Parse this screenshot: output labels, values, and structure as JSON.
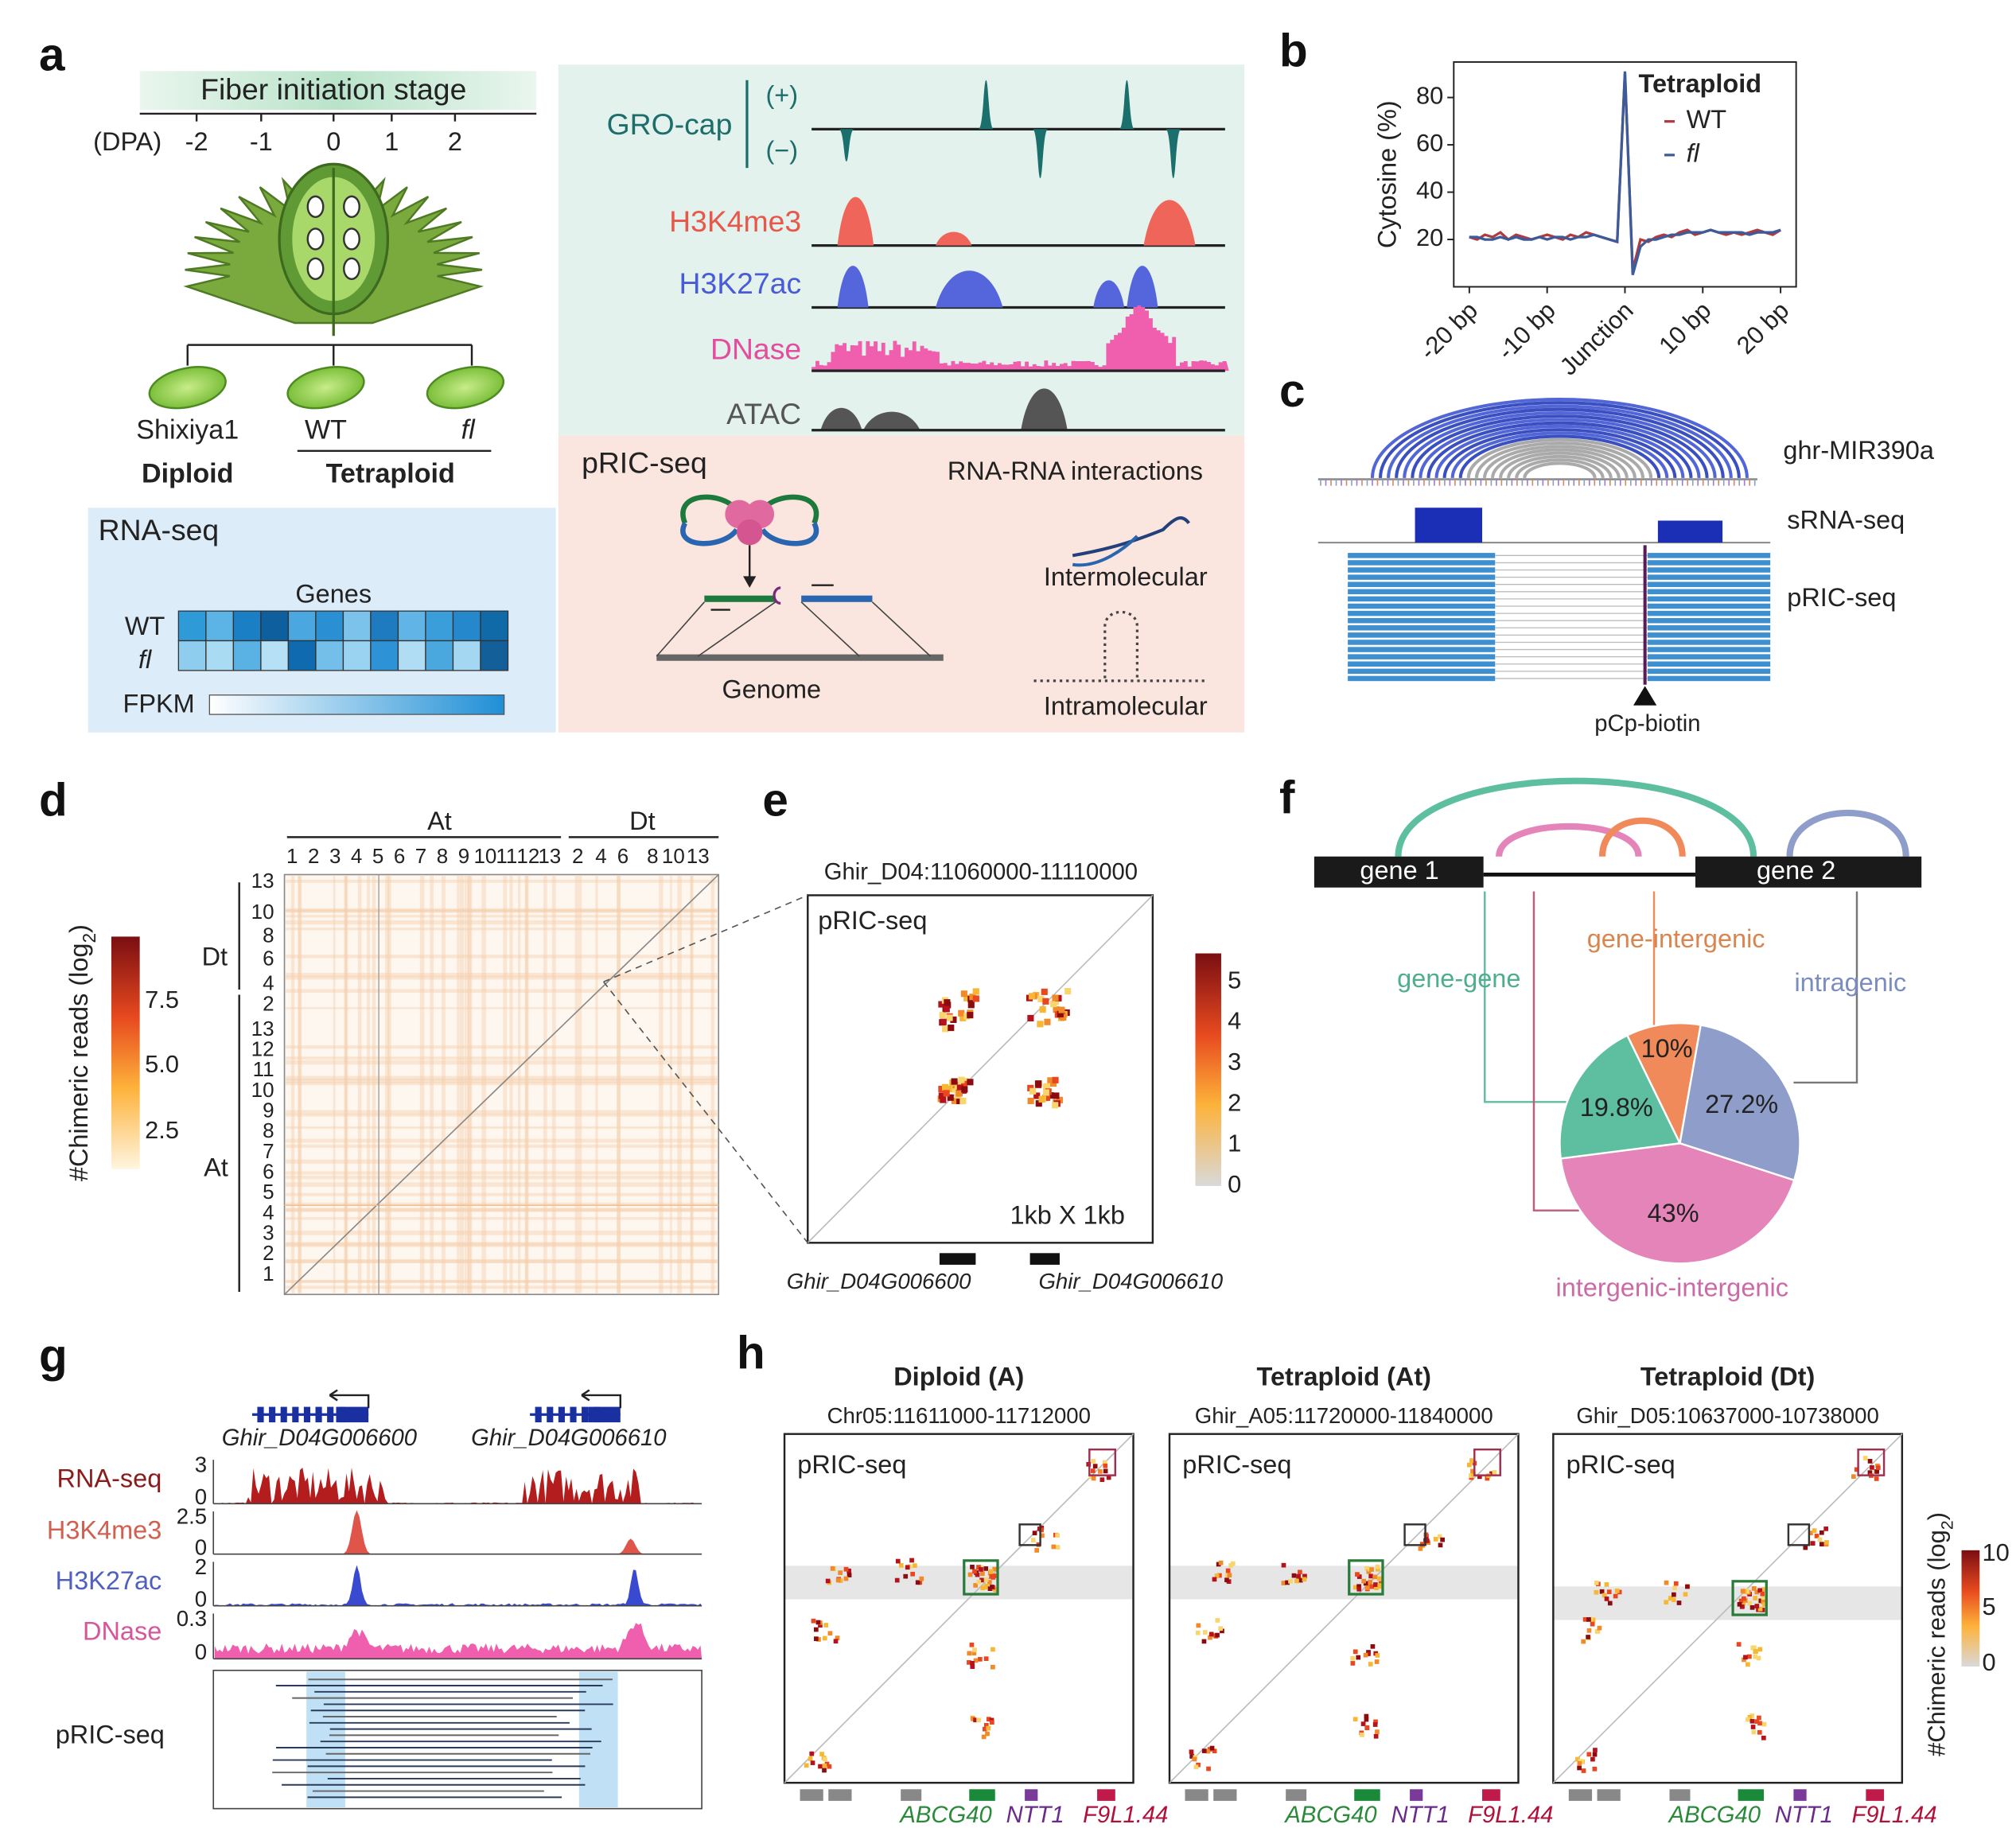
{
  "figure": {
    "panel_labels": [
      "a",
      "b",
      "c",
      "d",
      "e",
      "f",
      "g",
      "h"
    ],
    "a": {
      "stage": "Fiber initiation stage",
      "dpa_label": "(DPA)",
      "dpa_ticks": [
        "-2",
        "-1",
        "0",
        "1",
        "2"
      ],
      "samples": [
        "Shixiya1",
        "WT",
        "fl"
      ],
      "ploidy": [
        "Diploid",
        "Tetraploid"
      ],
      "rnaseq_title": "RNA-seq",
      "genes_label": "Genes",
      "rows": [
        "WT",
        "fl"
      ],
      "fpkm": "FPKM",
      "tracks": {
        "grocap": "GRO-cap",
        "plus": "(+)",
        "minus": "(−)",
        "h3k4me3": "H3K4me3",
        "h3k27ac": "H3K27ac",
        "dnase": "DNase",
        "atac": "ATAC"
      },
      "pric_title": "pRIC-seq",
      "rri": "RNA-RNA interactions",
      "inter": "Intermolecular",
      "intra": "Intramolecular",
      "genome": "Genome"
    },
    "c": {
      "arc_label": "ghr-MIR390a",
      "srna": "sRNA-seq",
      "pric": "pRIC-seq",
      "marker": "pCp-biotin"
    },
    "d": {
      "top_groups": [
        "At",
        "Dt"
      ],
      "left_groups": [
        "Dt",
        "At"
      ],
      "at_ticks": [
        "1",
        "2",
        "3",
        "4",
        "5",
        "6",
        "7",
        "8",
        "9",
        "10",
        "11",
        "12",
        "13"
      ],
      "dt_ticks": [
        "2",
        "4",
        "6",
        "8",
        "10",
        "13"
      ],
      "colorbar": [
        "7.5",
        "5.0",
        "2.5"
      ],
      "ylabel": [
        "#Chimeric reads (log",
        "2",
        ")"
      ]
    },
    "e": {
      "coords": "Ghir_D04:11060000-11110000",
      "label": "pRIC-seq",
      "scale": "1kb X 1kb",
      "colorbar": [
        "5",
        "4",
        "3",
        "2",
        "1",
        "0"
      ],
      "genes": [
        "Ghir_D04G006600",
        "Ghir_D04G006610"
      ]
    },
    "f": {
      "gene1": "gene 1",
      "gene2": "gene 2"
    },
    "g": {
      "genes": [
        "Ghir_D04G006600",
        "Ghir_D04G006610"
      ],
      "tracks": [
        "RNA-seq",
        "H3K4me3",
        "H3K27ac",
        "DNase"
      ],
      "scales": [
        [
          "3",
          "0"
        ],
        [
          "2.5",
          "0"
        ],
        [
          "2",
          "0"
        ],
        [
          "0.3",
          "0"
        ]
      ],
      "pric": "pRIC-seq"
    },
    "h": {
      "panels": [
        {
          "title": "Diploid (A)",
          "coords": "Chr05:11611000-11712000",
          "label": "pRIC-seq",
          "genes": [
            "ABCG40",
            "NTT1",
            "F9L1.44"
          ]
        },
        {
          "title": "Tetraploid (At)",
          "coords": "Ghir_A05:11720000-11840000",
          "label": "pRIC-seq",
          "genes": [
            "ABCG40",
            "NTT1",
            "F9L1.44"
          ]
        },
        {
          "title": "Tetraploid (Dt)",
          "coords": "Ghir_D05:10637000-10738000",
          "label": "pRIC-seq",
          "genes": [
            "ABCG40",
            "NTT1",
            "F9L1.44"
          ]
        }
      ],
      "colorbar": [
        "10",
        "5",
        "0"
      ],
      "ylabel": [
        "#Chimeric reads (log",
        "2",
        ")"
      ]
    }
  },
  "chart_data": [
    {
      "type": "line",
      "ylabel": "Cytosine (%)",
      "legend_title": "Tetraploid",
      "x": [
        -20,
        -19,
        -18,
        -17,
        -16,
        -15,
        -14,
        -13,
        -12,
        -11,
        -10,
        -9,
        -8,
        -7,
        -6,
        -5,
        -4,
        -3,
        -2,
        -1,
        0,
        1,
        2,
        3,
        4,
        5,
        6,
        7,
        8,
        9,
        10,
        11,
        12,
        13,
        14,
        15,
        16,
        17,
        18,
        19,
        20
      ],
      "series": [
        {
          "name": "WT",
          "color": "#b03a3e",
          "values": [
            21,
            20,
            22,
            21,
            23,
            20,
            22,
            21,
            20,
            21,
            22,
            21,
            20,
            22,
            21,
            23,
            22,
            21,
            20,
            19,
            90,
            7,
            20,
            19,
            21,
            22,
            21,
            23,
            24,
            22,
            23,
            24,
            23,
            22,
            23,
            22,
            23,
            24,
            23,
            22,
            24
          ]
        },
        {
          "name": "fl",
          "color": "#3b5b9a",
          "values": [
            21,
            21,
            20,
            20,
            21,
            20,
            21,
            20,
            20,
            21,
            20,
            21,
            21,
            20,
            21,
            21,
            22,
            21,
            20,
            19,
            91,
            5,
            17,
            20,
            20,
            21,
            22,
            22,
            23,
            23,
            23,
            24,
            23,
            23,
            23,
            23,
            22,
            23,
            23,
            23,
            24
          ]
        }
      ],
      "xlim": [
        -22,
        22
      ],
      "ylim": [
        0,
        95
      ],
      "xticks": [
        {
          "value": -20,
          "label": "-20 bp"
        },
        {
          "value": -10,
          "label": "-10 bp"
        },
        {
          "value": 0,
          "label": "Junction"
        },
        {
          "value": 10,
          "label": "10 bp"
        },
        {
          "value": 20,
          "label": "20 bp"
        }
      ],
      "yticks": [
        20,
        40,
        60,
        80
      ]
    },
    {
      "type": "pie",
      "categories": [
        "gene-intergenic",
        "intragenic",
        "intergenic-intergenic",
        "gene-gene"
      ],
      "values": [
        10,
        27.2,
        43,
        19.8
      ],
      "value_labels": [
        "10%",
        "27.2%",
        "43%",
        "19.8%"
      ],
      "colors": [
        "#f08a5a",
        "#8e9dc9",
        "#e584b9",
        "#5dbf9f"
      ]
    }
  ]
}
